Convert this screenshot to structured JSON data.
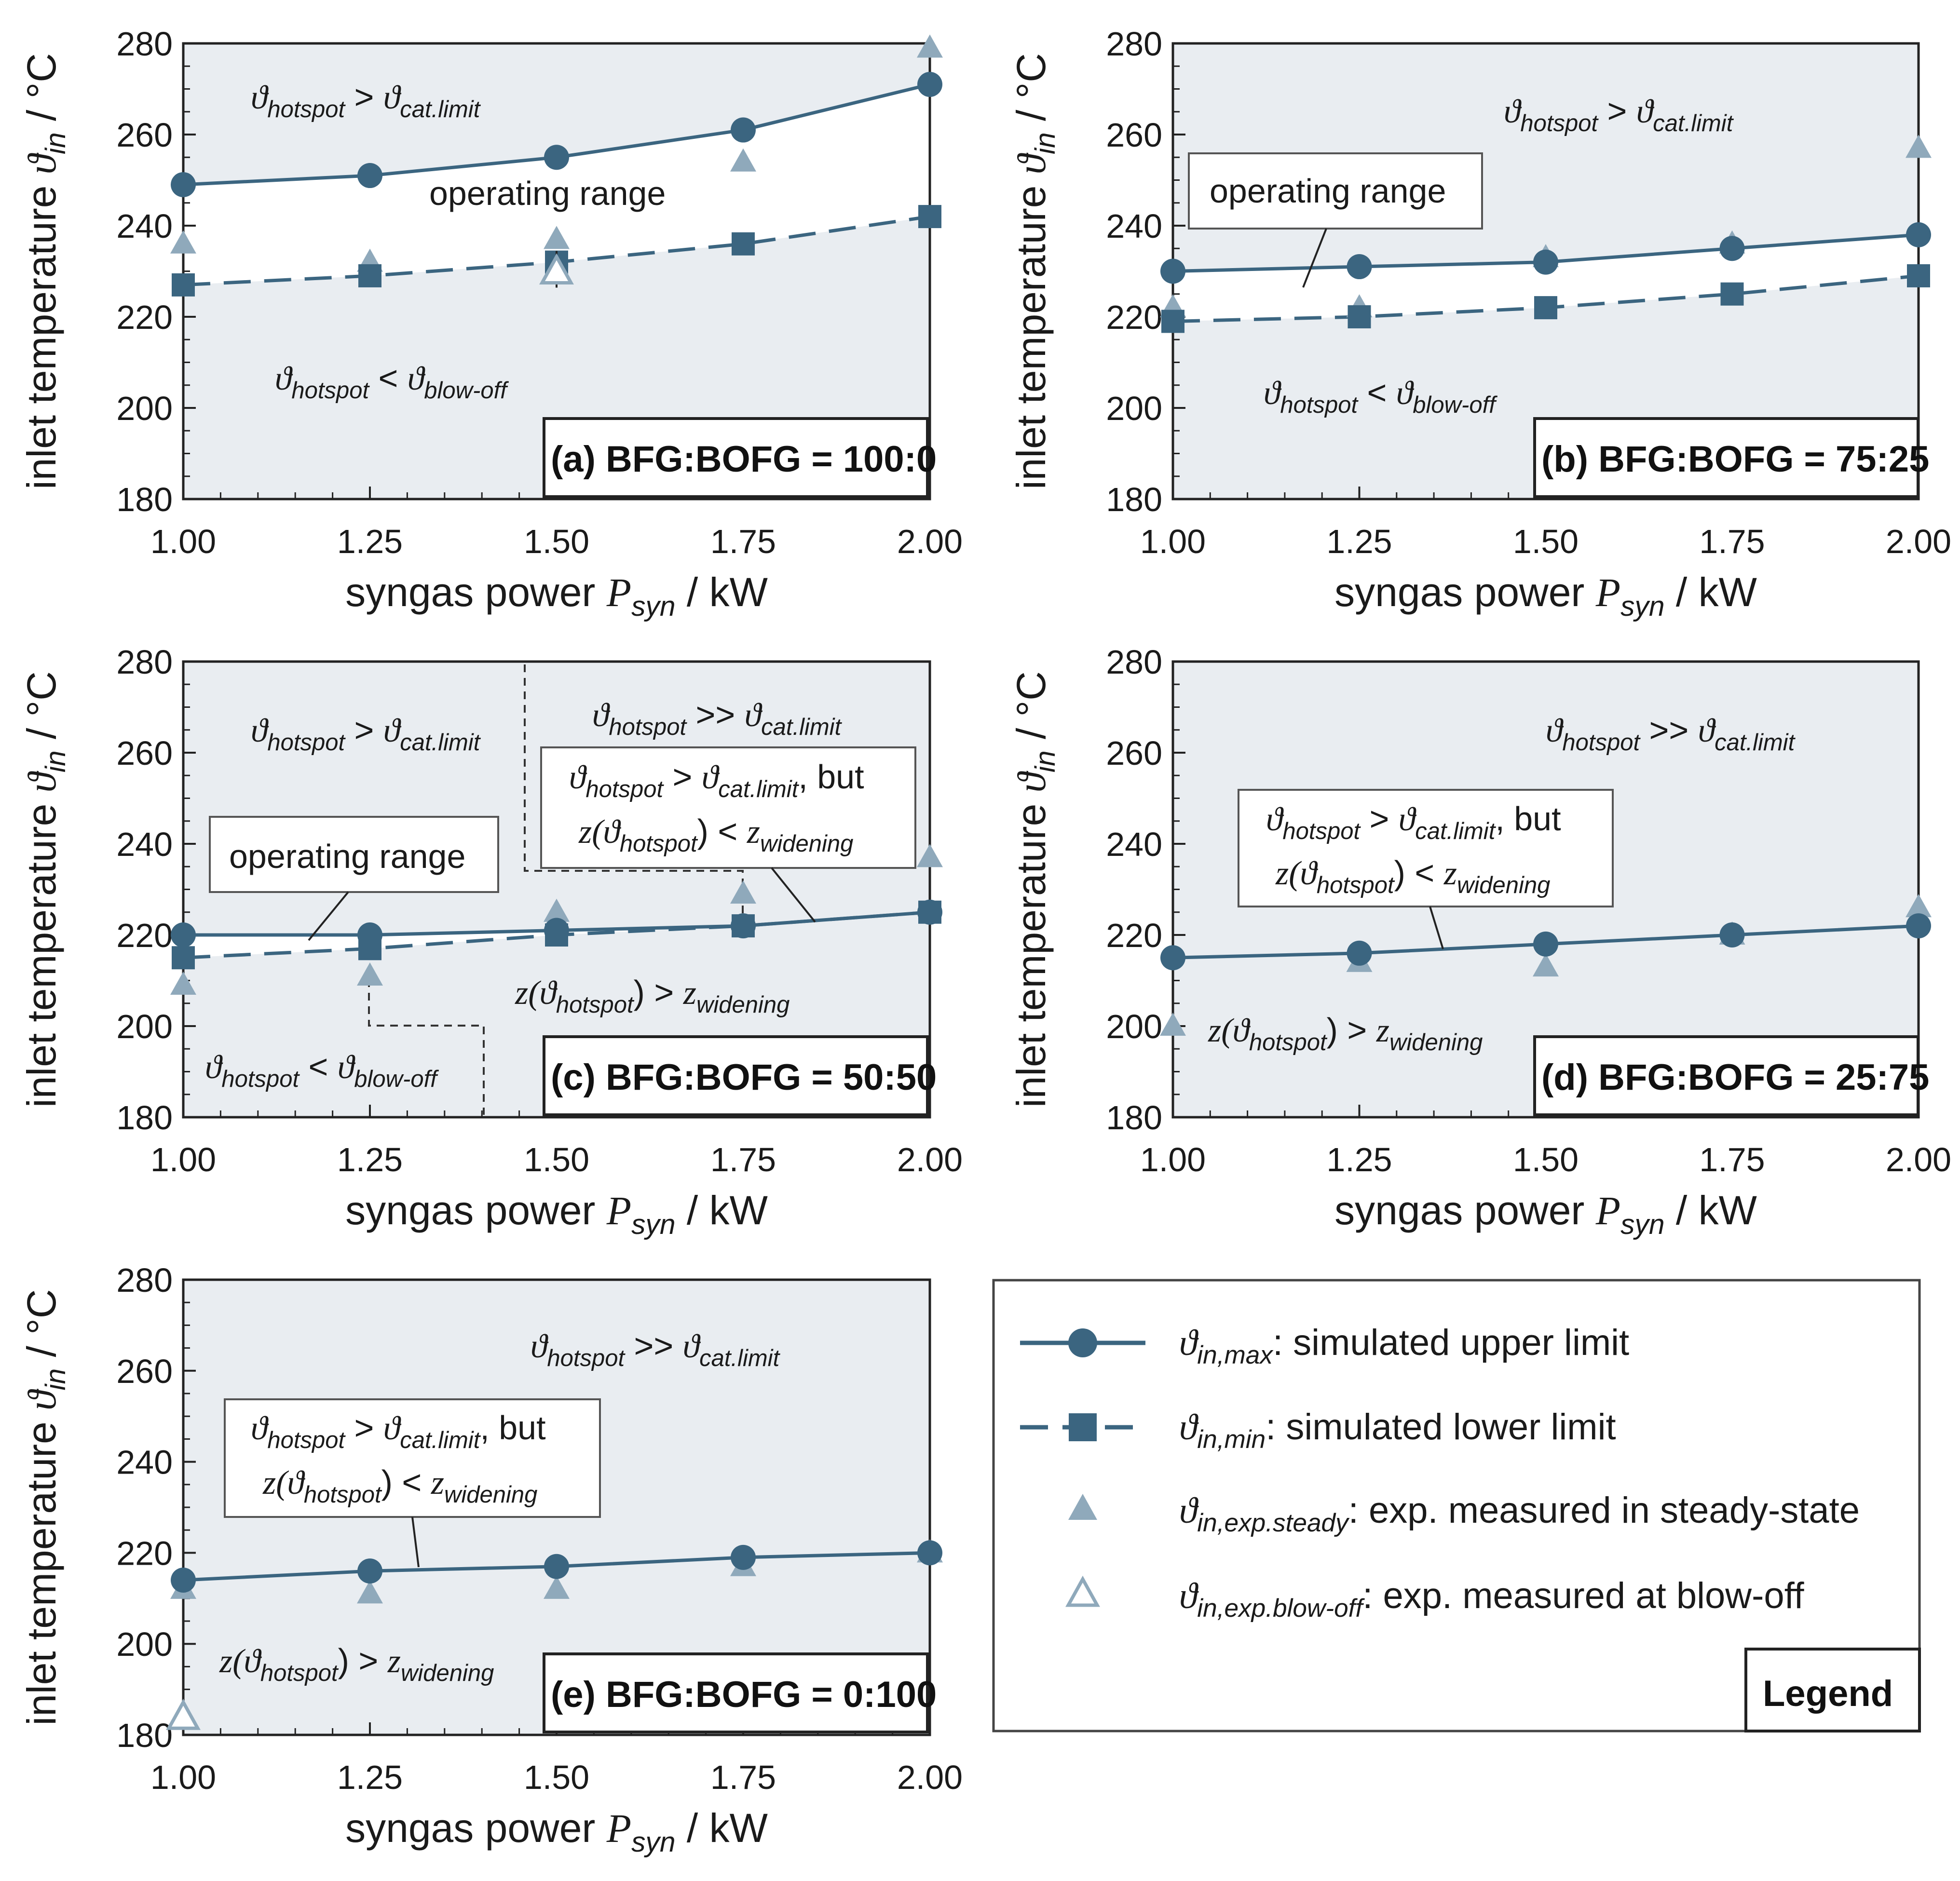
{
  "colors": {
    "region": "#e9edf1",
    "sim": "#3b6580",
    "exp": "#8fa9bb",
    "frame": "#222222"
  },
  "shared_axis": {
    "xlabel_main": "syngas power ",
    "xlabel_sym": "P",
    "xlabel_sub": "syn",
    "xlabel_unit": " / kW",
    "ylabel_main": "inlet temperature ",
    "ylabel_sym": "ϑ",
    "ylabel_sub": "in",
    "ylabel_unit": " / °C",
    "xticks": [
      "1.00",
      "1.25",
      "1.50",
      "1.75",
      "2.00"
    ],
    "yticks": [
      "180",
      "200",
      "220",
      "240",
      "260",
      "280"
    ]
  },
  "chart_data": [
    {
      "type": "line",
      "panel_label": "(a) BFG:BOFG = 100:0",
      "x": [
        1.0,
        1.25,
        1.5,
        1.75,
        2.0
      ],
      "xlim": [
        1.0,
        2.0
      ],
      "ylim": [
        180,
        280
      ],
      "series": [
        {
          "name": "ϑin,max: simulated upper limit",
          "values": [
            249,
            251,
            255,
            261,
            271
          ]
        },
        {
          "name": "ϑin,min: simulated lower limit",
          "values": [
            227,
            229,
            232,
            236,
            242
          ]
        },
        {
          "name": "ϑin,exp.steady: exp. measured in steady-state",
          "values": [
            236,
            232,
            237,
            254,
            279
          ]
        },
        {
          "name": "ϑin,exp.blow-off: exp. measured at blow-off",
          "points": [
            [
              1.5,
              230
            ]
          ]
        }
      ],
      "annotations": [
        {
          "text": "operating range",
          "boxed": false
        },
        {
          "sym": "ϑ",
          "sub1": "hotspot",
          "op": " > ",
          "sub2": "cat.limit"
        },
        {
          "sym": "ϑ",
          "sub1": "hotspot",
          "op": " < ",
          "sub2": "blow-off"
        }
      ]
    },
    {
      "type": "line",
      "panel_label": "(b) BFG:BOFG = 75:25",
      "x": [
        1.0,
        1.25,
        1.5,
        1.75,
        2.0
      ],
      "xlim": [
        1.0,
        2.0
      ],
      "ylim": [
        180,
        280
      ],
      "series": [
        {
          "name": "ϑin,max: simulated upper limit",
          "values": [
            230,
            231,
            232,
            235,
            238
          ]
        },
        {
          "name": "ϑin,min: simulated lower limit",
          "values": [
            219,
            220,
            222,
            225,
            229
          ]
        },
        {
          "name": "ϑin,exp.steady: exp. measured in steady-state",
          "values": [
            222,
            222,
            233,
            236,
            257
          ]
        }
      ],
      "annotations": [
        {
          "text": "operating range",
          "boxed": true
        },
        {
          "sym": "ϑ",
          "sub1": "hotspot",
          "op": " > ",
          "sub2": "cat.limit"
        },
        {
          "sym": "ϑ",
          "sub1": "hotspot",
          "op": " < ",
          "sub2": "blow-off"
        }
      ]
    },
    {
      "type": "line",
      "panel_label": "(c) BFG:BOFG = 50:50",
      "x": [
        1.0,
        1.25,
        1.5,
        1.75,
        2.0
      ],
      "xlim": [
        1.0,
        2.0
      ],
      "ylim": [
        180,
        280
      ],
      "series": [
        {
          "name": "ϑin,max: simulated upper limit",
          "values": [
            220,
            220,
            221,
            222,
            225
          ]
        },
        {
          "name": "ϑin,min: simulated lower limit",
          "values": [
            215,
            217,
            220,
            222,
            225
          ]
        },
        {
          "name": "ϑin,exp.steady: exp. measured in steady-state",
          "values": [
            209,
            211,
            225,
            229,
            237
          ]
        }
      ],
      "annotations": [
        {
          "text": "operating range",
          "boxed": true
        },
        {
          "sym": "ϑ",
          "sub1": "hotspot",
          "op": " > ",
          "sub2": "cat.limit"
        },
        {
          "sym": "ϑ",
          "sub1": "hotspot",
          "op": " >> ",
          "sub2": "cat.limit"
        },
        {
          "sym": "ϑ",
          "sub1": "hotspot",
          "op": " < ",
          "sub2": "blow-off"
        }
      ]
    },
    {
      "type": "line",
      "panel_label": "(d) BFG:BOFG = 25:75",
      "x": [
        1.0,
        1.25,
        1.5,
        1.75,
        2.0
      ],
      "xlim": [
        1.0,
        2.0
      ],
      "ylim": [
        180,
        280
      ],
      "series": [
        {
          "name": "ϑin,max: simulated upper limit",
          "values": [
            215,
            216,
            218,
            220,
            222
          ]
        },
        {
          "name": "ϑin,exp.steady: exp. measured in steady-state",
          "values": [
            200,
            214,
            213,
            220,
            226
          ]
        }
      ],
      "annotations": [
        {
          "sym": "ϑ",
          "sub1": "hotspot",
          "op": " >> ",
          "sub2": "cat.limit"
        }
      ]
    },
    {
      "type": "line",
      "panel_label": "(e) BFG:BOFG = 0:100",
      "x": [
        1.0,
        1.25,
        1.5,
        1.75,
        2.0
      ],
      "xlim": [
        1.0,
        2.0
      ],
      "ylim": [
        180,
        280
      ],
      "series": [
        {
          "name": "ϑin,max: simulated upper limit",
          "values": [
            214,
            216,
            217,
            219,
            220
          ]
        },
        {
          "name": "ϑin,exp.steady: exp. measured in steady-state",
          "values": [
            212,
            211,
            212,
            217,
            220
          ]
        },
        {
          "name": "ϑin,exp.blow-off: exp. measured at blow-off",
          "points": [
            [
              1.0,
              184
            ]
          ]
        }
      ],
      "annotations": [
        {
          "sym": "ϑ",
          "sub1": "hotspot",
          "op": " >> ",
          "sub2": "cat.limit"
        }
      ]
    }
  ],
  "widening": {
    "line1_sym": "ϑ",
    "line1_sub1": "hotspot",
    "line1_op": " > ",
    "line1_sub2": "cat.limit",
    "line1_tail": ", but",
    "line2_z": "z(",
    "line2_sym": "ϑ",
    "line2_sub1": "hotspot",
    "line2_close": ") < ",
    "line2_z2": "z",
    "line2_sub2": "widening",
    "below_z": "z(",
    "below_close": ") > "
  },
  "legend": {
    "title": "Legend",
    "entries": [
      {
        "sym": "ϑ",
        "sub": "in,max",
        "text": ": simulated upper limit"
      },
      {
        "sym": "ϑ",
        "sub": "in,min",
        "text": ": simulated lower limit"
      },
      {
        "sym": "ϑ",
        "sub": "in,exp.steady",
        "text": ": exp. measured in steady-state"
      },
      {
        "sym": "ϑ",
        "sub": "in,exp.blow-off",
        "text": ": exp. measured at blow-off"
      }
    ]
  }
}
